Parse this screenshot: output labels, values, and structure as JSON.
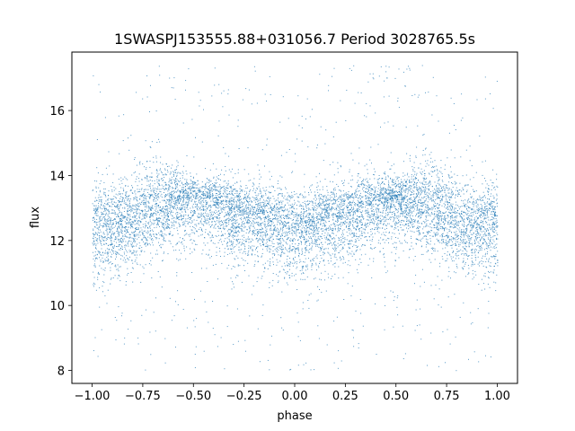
{
  "chart_data": {
    "type": "scatter",
    "title": "1SWASPJ153555.88+031056.7 Period 3028765.5s",
    "xlabel": "phase",
    "ylabel": "flux",
    "xlim": [
      -1.1,
      1.1
    ],
    "ylim": [
      7.6,
      17.8
    ],
    "xticks": [
      -1.0,
      -0.75,
      -0.5,
      -0.25,
      0.0,
      0.25,
      0.5,
      0.75,
      1.0
    ],
    "xtick_labels": [
      "−1.00",
      "−0.75",
      "−0.50",
      "−0.25",
      "0.00",
      "0.25",
      "0.50",
      "0.75",
      "1.00"
    ],
    "yticks": [
      8,
      10,
      12,
      14,
      16
    ],
    "ytick_labels": [
      "8",
      "10",
      "12",
      "14",
      "16"
    ],
    "grid": false,
    "marker_color": "#1f77b4",
    "series_summary": {
      "phase_range": [
        -1.0,
        1.0
      ],
      "flux_median": 12.6,
      "flux_core_range": [
        11.0,
        14.2
      ],
      "flux_full_range": [
        8.0,
        17.4
      ],
      "symmetric_about_phase": 0.0
    },
    "envelope": {
      "phase": [
        -1.0,
        -0.9,
        -0.8,
        -0.7,
        -0.6,
        -0.5,
        -0.4,
        -0.3,
        -0.2,
        -0.1,
        0.0,
        0.1,
        0.2,
        0.3,
        0.4,
        0.5,
        0.6,
        0.7,
        0.8,
        0.9,
        1.0
      ],
      "center": [
        12.5,
        12.4,
        12.6,
        12.9,
        13.2,
        13.3,
        13.2,
        12.9,
        12.7,
        12.6,
        12.5,
        12.6,
        12.7,
        12.9,
        13.2,
        13.3,
        13.2,
        12.9,
        12.6,
        12.4,
        12.5
      ],
      "low": [
        10.7,
        10.9,
        11.2,
        11.5,
        11.8,
        11.8,
        11.7,
        11.4,
        11.2,
        11.1,
        10.9,
        11.1,
        11.2,
        11.4,
        11.7,
        11.8,
        11.8,
        11.5,
        11.2,
        10.9,
        10.7
      ],
      "high": [
        14.0,
        13.6,
        13.9,
        14.5,
        14.4,
        13.9,
        14.0,
        13.9,
        13.8,
        13.6,
        13.5,
        13.6,
        13.8,
        13.9,
        14.0,
        13.9,
        14.4,
        14.5,
        13.9,
        13.6,
        14.0
      ]
    }
  }
}
